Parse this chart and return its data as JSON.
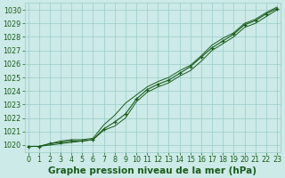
{
  "x": [
    0,
    1,
    2,
    3,
    4,
    5,
    6,
    7,
    8,
    9,
    10,
    11,
    12,
    13,
    14,
    15,
    16,
    17,
    18,
    19,
    20,
    21,
    22,
    23
  ],
  "line_main": [
    1019.9,
    1019.9,
    1020.1,
    1020.2,
    1020.3,
    1020.3,
    1020.4,
    1021.2,
    1021.7,
    1022.3,
    1023.4,
    1024.1,
    1024.5,
    1024.8,
    1025.3,
    1025.8,
    1026.5,
    1027.2,
    1027.7,
    1028.2,
    1028.9,
    1029.2,
    1029.7,
    1030.1
  ],
  "line_upper": [
    1019.9,
    1019.9,
    1020.1,
    1020.3,
    1020.4,
    1020.4,
    1020.5,
    1021.5,
    1022.2,
    1023.1,
    1023.7,
    1024.3,
    1024.7,
    1025.0,
    1025.5,
    1025.9,
    1026.6,
    1027.4,
    1027.9,
    1028.3,
    1029.0,
    1029.3,
    1029.8,
    1030.2
  ],
  "line_lower": [
    1019.9,
    1019.9,
    1020.0,
    1020.1,
    1020.2,
    1020.3,
    1020.4,
    1021.1,
    1021.4,
    1022.0,
    1023.2,
    1023.9,
    1024.3,
    1024.6,
    1025.1,
    1025.5,
    1026.2,
    1027.0,
    1027.5,
    1028.0,
    1028.7,
    1029.0,
    1029.5,
    1030.0
  ],
  "ylim": [
    1019.5,
    1030.5
  ],
  "xlim": [
    -0.3,
    23.3
  ],
  "yticks": [
    1020,
    1021,
    1022,
    1023,
    1024,
    1025,
    1026,
    1027,
    1028,
    1029,
    1030
  ],
  "xticks": [
    0,
    1,
    2,
    3,
    4,
    5,
    6,
    7,
    8,
    9,
    10,
    11,
    12,
    13,
    14,
    15,
    16,
    17,
    18,
    19,
    20,
    21,
    22,
    23
  ],
  "xlabel": "Graphe pression niveau de la mer (hPa)",
  "line_color": "#1a5c1a",
  "bg_color": "#cceae7",
  "grid_color": "#99ccc8",
  "text_color": "#1a5c1a",
  "xlabel_fontsize": 7.5,
  "tick_fontsize": 5.8
}
